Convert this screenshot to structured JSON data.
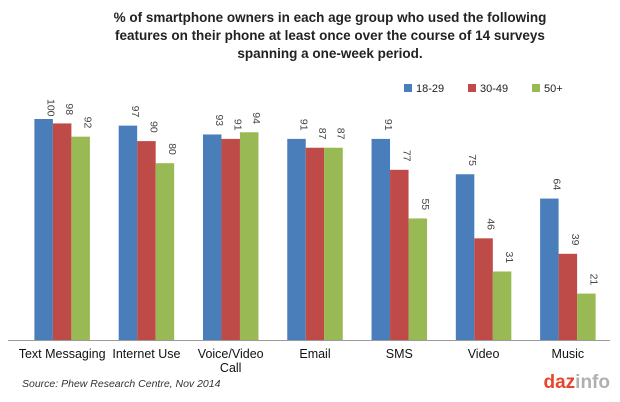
{
  "chart_data": {
    "type": "bar",
    "title": [
      "% of smartphone owners in each age group who used the following",
      "features on their phone at least once  over the course of 14 surveys",
      "spanning a one-week period."
    ],
    "categories": [
      [
        "Text Messaging"
      ],
      [
        "Internet Use"
      ],
      [
        "Voice/Video",
        "Call"
      ],
      [
        "Email"
      ],
      [
        "SMS"
      ],
      [
        "Video"
      ],
      [
        "Music"
      ]
    ],
    "series": [
      {
        "name": "18-29",
        "color": "#4a7ebb",
        "values": [
          100,
          97,
          93,
          91,
          91,
          75,
          64
        ]
      },
      {
        "name": "30-49",
        "color": "#be4b48",
        "values": [
          98,
          90,
          91,
          87,
          77,
          46,
          39
        ]
      },
      {
        "name": "50+",
        "color": "#98b954",
        "values": [
          92,
          80,
          94,
          87,
          55,
          31,
          21
        ]
      }
    ],
    "ylim": [
      0,
      100
    ],
    "grid": false,
    "legend_position": "top-right",
    "data_labels": "rotated-vertical"
  },
  "source": "Source: Phew Research Centre, Nov 2014",
  "logo": {
    "part1": "daz",
    "part2": "info"
  }
}
